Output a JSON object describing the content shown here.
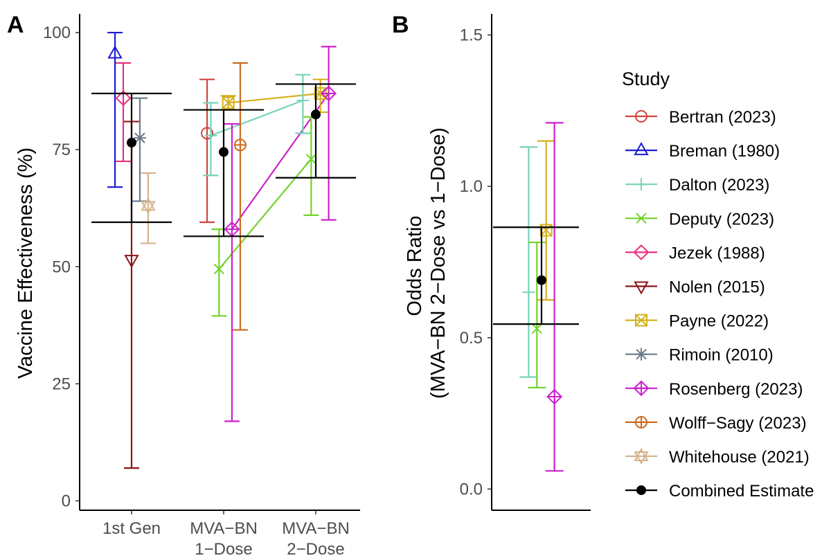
{
  "chart_data": [
    {
      "type": "scatter",
      "panel_tag": "A",
      "ylabel": "Vaccine Effectiveness (%)",
      "xlabel": "",
      "categories": [
        {
          "id": "first",
          "lines": [
            "1st Gen"
          ]
        },
        {
          "id": "one",
          "lines": [
            "MVA−BN",
            "1−Dose"
          ]
        },
        {
          "id": "two",
          "lines": [
            "MVA−BN",
            "2−Dose"
          ]
        }
      ],
      "ylim": [
        -2,
        104
      ],
      "yticks": [
        0,
        25,
        50,
        75,
        100
      ],
      "series": [
        {
          "name": "Bertran (2023)",
          "points": [
            {
              "cat": 1,
              "off": -0.18,
              "y": 78.5,
              "lo": 59.5,
              "hi": 90
            }
          ]
        },
        {
          "name": "Breman (1980)",
          "points": [
            {
              "cat": 0,
              "off": -0.18,
              "y": 95.5,
              "lo": 67,
              "hi": 100
            }
          ]
        },
        {
          "name": "Dalton (2023)",
          "points": [
            {
              "cat": 1,
              "off": -0.14,
              "y": 78,
              "lo": 69.5,
              "hi": 85
            },
            {
              "cat": 2,
              "off": -0.14,
              "y": 85.5,
              "lo": 78.5,
              "hi": 91
            }
          ]
        },
        {
          "name": "Deputy (2023)",
          "points": [
            {
              "cat": 1,
              "off": -0.05,
              "y": 49.5,
              "lo": 39.5,
              "hi": 58
            },
            {
              "cat": 2,
              "off": -0.05,
              "y": 73,
              "lo": 61,
              "hi": 82
            }
          ]
        },
        {
          "name": "Jezek (1988)",
          "points": [
            {
              "cat": 0,
              "off": -0.09,
              "y": 86,
              "lo": 72.5,
              "hi": 93.5
            }
          ]
        },
        {
          "name": "Nolen (2015)",
          "points": [
            {
              "cat": 0,
              "off": 0.0,
              "y": 51.5,
              "lo": 7,
              "hi": 81
            }
          ]
        },
        {
          "name": "Payne (2022)",
          "points": [
            {
              "cat": 1,
              "off": 0.05,
              "y": 85,
              "lo": 83.5,
              "hi": 86.5
            },
            {
              "cat": 2,
              "off": 0.05,
              "y": 87,
              "lo": 83,
              "hi": 90
            }
          ]
        },
        {
          "name": "Rimoin (2010)",
          "points": [
            {
              "cat": 0,
              "off": 0.09,
              "y": 77.5,
              "lo": 64,
              "hi": 86
            }
          ]
        },
        {
          "name": "Rosenberg (2023)",
          "points": [
            {
              "cat": 1,
              "off": 0.09,
              "y": 58,
              "lo": 17,
              "hi": 80.5
            },
            {
              "cat": 2,
              "off": 0.14,
              "y": 87,
              "lo": 60,
              "hi": 97
            }
          ]
        },
        {
          "name": "Wolff−Sagy (2023)",
          "points": [
            {
              "cat": 1,
              "off": 0.18,
              "y": 76,
              "lo": 36.5,
              "hi": 93.5
            }
          ]
        },
        {
          "name": "Whitehouse (2021)",
          "points": [
            {
              "cat": 0,
              "off": 0.18,
              "y": 63,
              "lo": 55,
              "hi": 70
            }
          ]
        }
      ],
      "connect_series": [
        "Dalton (2023)",
        "Deputy (2023)",
        "Payne (2022)",
        "Rosenberg (2023)"
      ],
      "combined": [
        {
          "cat": 0,
          "y": 76.5,
          "lo": 59.5,
          "hi": 87
        },
        {
          "cat": 1,
          "y": 74.5,
          "lo": 56.5,
          "hi": 83.5
        },
        {
          "cat": 2,
          "y": 82.5,
          "lo": 69,
          "hi": 89
        }
      ]
    },
    {
      "type": "scatter",
      "panel_tag": "B",
      "ylabel_lines": [
        "Odds Ratio",
        "(MVA−BN 2−Dose vs 1−Dose)"
      ],
      "xlabel": "",
      "ylim": [
        -0.07,
        1.57
      ],
      "yticks": [
        0.0,
        0.5,
        1.0,
        1.5
      ],
      "tick_format": "one-decimal",
      "series": [
        {
          "name": "Dalton (2023)",
          "off": -0.14,
          "y": 0.65,
          "lo": 0.37,
          "hi": 1.13
        },
        {
          "name": "Deputy (2023)",
          "off": -0.05,
          "y": 0.53,
          "lo": 0.335,
          "hi": 0.815
        },
        {
          "name": "Payne (2022)",
          "off": 0.05,
          "y": 0.855,
          "lo": 0.625,
          "hi": 1.15
        },
        {
          "name": "Rosenberg (2023)",
          "off": 0.14,
          "y": 0.305,
          "lo": 0.06,
          "hi": 1.21
        }
      ],
      "combined": {
        "y": 0.69,
        "lo": 0.545,
        "hi": 0.865
      }
    }
  ],
  "legend": {
    "title": "Study",
    "items": [
      {
        "label": "Bertran (2023)",
        "color": "#d0453d",
        "shape": "circle"
      },
      {
        "label": "Breman (1980)",
        "color": "#1b1bd1",
        "shape": "triangle"
      },
      {
        "label": "Dalton (2023)",
        "color": "#76d3bb",
        "shape": "plus"
      },
      {
        "label": "Deputy (2023)",
        "color": "#73d22a",
        "shape": "cross"
      },
      {
        "label": "Jezek (1988)",
        "color": "#e5317f",
        "shape": "diamond"
      },
      {
        "label": "Nolen (2015)",
        "color": "#8b1414",
        "shape": "triangle-down"
      },
      {
        "label": "Payne (2022)",
        "color": "#d4b11b",
        "shape": "square-cross"
      },
      {
        "label": "Rimoin (2010)",
        "color": "#6b7b8c",
        "shape": "asterisk"
      },
      {
        "label": "Rosenberg (2023)",
        "color": "#cc1fcc",
        "shape": "diamond-plus"
      },
      {
        "label": "Wolff−Sagy (2023)",
        "color": "#cb6a1c",
        "shape": "circle-plus"
      },
      {
        "label": "Whitehouse (2021)",
        "color": "#d2b48c",
        "shape": "star"
      },
      {
        "label": "Combined Estimate",
        "color": "#000000",
        "shape": "dot"
      }
    ]
  }
}
